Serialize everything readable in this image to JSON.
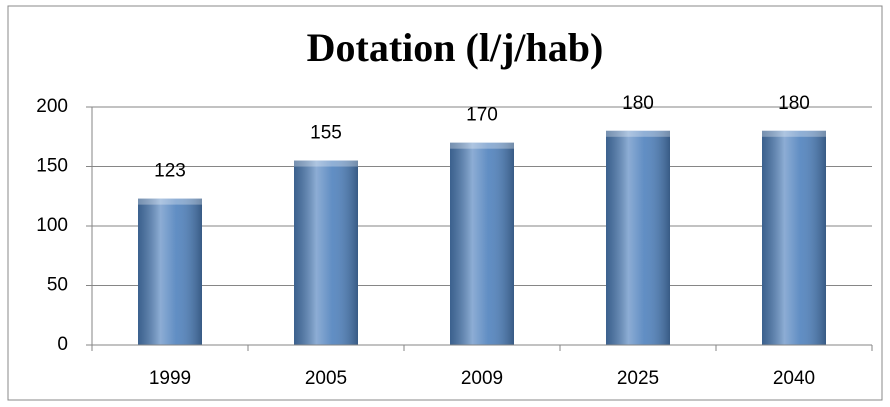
{
  "chart_data": {
    "type": "bar",
    "title": "Dotation (l/j/hab)",
    "categories": [
      "1999",
      "2005",
      "2009",
      "2025",
      "2040"
    ],
    "values": [
      123,
      155,
      170,
      180,
      180
    ],
    "color": "#4f81bd",
    "ylim": [
      0,
      200
    ],
    "yticks": [
      0,
      50,
      100,
      150,
      200
    ],
    "grid": true
  }
}
